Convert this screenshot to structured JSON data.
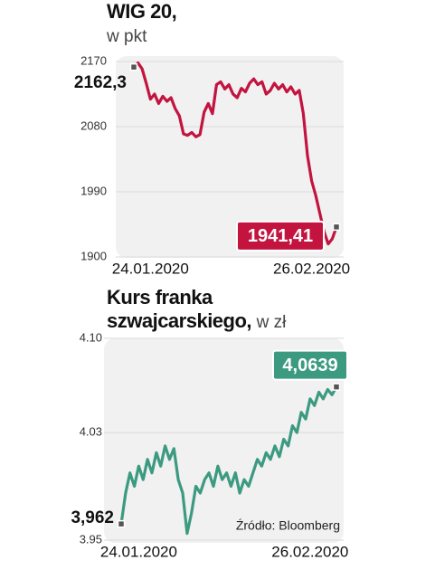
{
  "chart_data": [
    {
      "type": "line",
      "title": "WIG 20,",
      "subtitle": "w pkt",
      "color": "#c2143f",
      "grid": true,
      "ylim": [
        1900,
        2170
      ],
      "yticks": [
        1900,
        1990,
        2080,
        2170
      ],
      "categories": [
        null,
        null,
        null,
        null,
        "24.01.2020",
        null,
        null,
        null,
        null,
        null,
        null,
        null,
        null,
        null,
        null,
        null,
        null,
        null,
        null,
        null,
        null,
        null,
        null,
        null,
        null,
        null,
        null,
        null,
        null,
        null,
        null,
        null,
        null,
        null,
        null,
        null,
        null,
        null,
        null,
        null,
        null,
        null,
        null,
        "26.02.2020",
        null,
        null,
        null,
        null,
        null,
        null
      ],
      "values": [
        2162.3,
        2168,
        2160,
        2140,
        2118,
        2125,
        2112,
        2122,
        2115,
        2120,
        2105,
        2095,
        2070,
        2068,
        2072,
        2066,
        2069,
        2100,
        2112,
        2098,
        2138,
        2142,
        2132,
        2138,
        2125,
        2120,
        2133,
        2128,
        2140,
        2146,
        2138,
        2142,
        2125,
        2130,
        2140,
        2132,
        2138,
        2128,
        2135,
        2125,
        2130,
        2098,
        2040,
        2005,
        1985,
        1960,
        1935,
        1918,
        1925,
        1941.41
      ],
      "value_labels": [
        "2162,3",
        null,
        null,
        null,
        null,
        null,
        null,
        null,
        null,
        null,
        null,
        null,
        null,
        null,
        null,
        null,
        null,
        null,
        null,
        null,
        null,
        null,
        null,
        null,
        null,
        null,
        null,
        null,
        null,
        null,
        null,
        null,
        null,
        null,
        null,
        null,
        null,
        null,
        null,
        null,
        null,
        null,
        null,
        null,
        null,
        null,
        null,
        null,
        null,
        "1941,41"
      ]
    },
    {
      "type": "line",
      "title": "Kurs franka szwajcarskiego,",
      "subtitle": "w zł",
      "color": "#3c9a80",
      "grid": true,
      "source": "Źródło: Bloomberg",
      "ylim": [
        3.95,
        4.1
      ],
      "yticks": [
        3.95,
        4.03,
        {
          "value": 4.1,
          "label": "4.10"
        }
      ],
      "categories": [
        null,
        null,
        null,
        null,
        "24.01.2020",
        null,
        null,
        null,
        null,
        null,
        null,
        null,
        null,
        null,
        null,
        null,
        null,
        null,
        null,
        null,
        null,
        null,
        null,
        null,
        null,
        null,
        null,
        null,
        null,
        null,
        null,
        null,
        null,
        null,
        null,
        null,
        null,
        null,
        null,
        null,
        null,
        null,
        null,
        "26.02.2020",
        null,
        null,
        null,
        null,
        null,
        null
      ],
      "values": [
        3.962,
        3.985,
        4.0,
        3.99,
        4.005,
        3.995,
        4.01,
        4.0,
        4.015,
        4.005,
        4.02,
        4.01,
        4.018,
        3.995,
        3.985,
        3.955,
        3.97,
        3.99,
        3.985,
        3.995,
        4.0,
        3.99,
        4.005,
        3.995,
        4.0,
        3.99,
        4.0,
        3.985,
        3.995,
        3.99,
        4.0,
        4.01,
        4.005,
        4.015,
        4.01,
        4.02,
        4.012,
        4.025,
        4.02,
        4.035,
        4.03,
        4.045,
        4.04,
        4.055,
        4.05,
        4.06,
        4.055,
        4.062,
        4.058,
        4.0639
      ],
      "value_labels": [
        "3,962",
        null,
        null,
        null,
        null,
        null,
        null,
        null,
        null,
        null,
        null,
        null,
        null,
        null,
        null,
        null,
        null,
        null,
        null,
        null,
        null,
        null,
        null,
        null,
        null,
        null,
        null,
        null,
        null,
        null,
        null,
        null,
        null,
        null,
        null,
        null,
        null,
        null,
        null,
        null,
        null,
        null,
        null,
        null,
        null,
        null,
        null,
        null,
        null,
        "4,0639"
      ]
    }
  ]
}
